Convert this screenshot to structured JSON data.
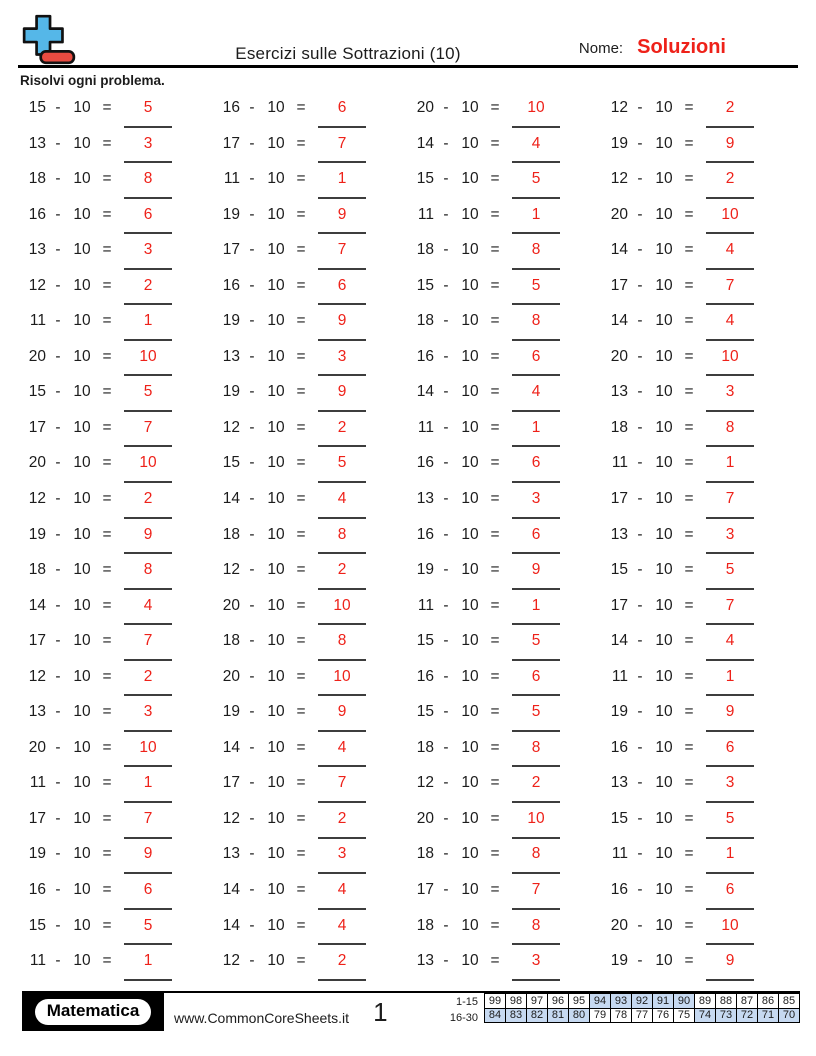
{
  "header": {
    "title": "Esercizi sulle Sottrazioni (10)",
    "name_label": "Nome:",
    "name_value": "Soluzioni"
  },
  "instruction": "Risolvi ogni problema.",
  "problems": {
    "operator": "-",
    "subtrahend": 10,
    "equals": "=",
    "items": [
      {
        "a": 15,
        "ans": 5
      },
      {
        "a": 16,
        "ans": 6
      },
      {
        "a": 20,
        "ans": 10
      },
      {
        "a": 12,
        "ans": 2
      },
      {
        "a": 13,
        "ans": 3
      },
      {
        "a": 17,
        "ans": 7
      },
      {
        "a": 14,
        "ans": 4
      },
      {
        "a": 19,
        "ans": 9
      },
      {
        "a": 18,
        "ans": 8
      },
      {
        "a": 11,
        "ans": 1
      },
      {
        "a": 15,
        "ans": 5
      },
      {
        "a": 12,
        "ans": 2
      },
      {
        "a": 16,
        "ans": 6
      },
      {
        "a": 19,
        "ans": 9
      },
      {
        "a": 11,
        "ans": 1
      },
      {
        "a": 20,
        "ans": 10
      },
      {
        "a": 13,
        "ans": 3
      },
      {
        "a": 17,
        "ans": 7
      },
      {
        "a": 18,
        "ans": 8
      },
      {
        "a": 14,
        "ans": 4
      },
      {
        "a": 12,
        "ans": 2
      },
      {
        "a": 16,
        "ans": 6
      },
      {
        "a": 15,
        "ans": 5
      },
      {
        "a": 17,
        "ans": 7
      },
      {
        "a": 11,
        "ans": 1
      },
      {
        "a": 19,
        "ans": 9
      },
      {
        "a": 18,
        "ans": 8
      },
      {
        "a": 14,
        "ans": 4
      },
      {
        "a": 20,
        "ans": 10
      },
      {
        "a": 13,
        "ans": 3
      },
      {
        "a": 16,
        "ans": 6
      },
      {
        "a": 20,
        "ans": 10
      },
      {
        "a": 15,
        "ans": 5
      },
      {
        "a": 19,
        "ans": 9
      },
      {
        "a": 14,
        "ans": 4
      },
      {
        "a": 13,
        "ans": 3
      },
      {
        "a": 17,
        "ans": 7
      },
      {
        "a": 12,
        "ans": 2
      },
      {
        "a": 11,
        "ans": 1
      },
      {
        "a": 18,
        "ans": 8
      },
      {
        "a": 20,
        "ans": 10
      },
      {
        "a": 15,
        "ans": 5
      },
      {
        "a": 16,
        "ans": 6
      },
      {
        "a": 11,
        "ans": 1
      },
      {
        "a": 12,
        "ans": 2
      },
      {
        "a": 14,
        "ans": 4
      },
      {
        "a": 13,
        "ans": 3
      },
      {
        "a": 17,
        "ans": 7
      },
      {
        "a": 19,
        "ans": 9
      },
      {
        "a": 18,
        "ans": 8
      },
      {
        "a": 16,
        "ans": 6
      },
      {
        "a": 13,
        "ans": 3
      },
      {
        "a": 18,
        "ans": 8
      },
      {
        "a": 12,
        "ans": 2
      },
      {
        "a": 19,
        "ans": 9
      },
      {
        "a": 15,
        "ans": 5
      },
      {
        "a": 14,
        "ans": 4
      },
      {
        "a": 20,
        "ans": 10
      },
      {
        "a": 11,
        "ans": 1
      },
      {
        "a": 17,
        "ans": 7
      },
      {
        "a": 17,
        "ans": 7
      },
      {
        "a": 18,
        "ans": 8
      },
      {
        "a": 15,
        "ans": 5
      },
      {
        "a": 14,
        "ans": 4
      },
      {
        "a": 12,
        "ans": 2
      },
      {
        "a": 20,
        "ans": 10
      },
      {
        "a": 16,
        "ans": 6
      },
      {
        "a": 11,
        "ans": 1
      },
      {
        "a": 13,
        "ans": 3
      },
      {
        "a": 19,
        "ans": 9
      },
      {
        "a": 15,
        "ans": 5
      },
      {
        "a": 19,
        "ans": 9
      },
      {
        "a": 20,
        "ans": 10
      },
      {
        "a": 14,
        "ans": 4
      },
      {
        "a": 18,
        "ans": 8
      },
      {
        "a": 16,
        "ans": 6
      },
      {
        "a": 11,
        "ans": 1
      },
      {
        "a": 17,
        "ans": 7
      },
      {
        "a": 12,
        "ans": 2
      },
      {
        "a": 13,
        "ans": 3
      },
      {
        "a": 17,
        "ans": 7
      },
      {
        "a": 12,
        "ans": 2
      },
      {
        "a": 20,
        "ans": 10
      },
      {
        "a": 15,
        "ans": 5
      },
      {
        "a": 19,
        "ans": 9
      },
      {
        "a": 13,
        "ans": 3
      },
      {
        "a": 18,
        "ans": 8
      },
      {
        "a": 11,
        "ans": 1
      },
      {
        "a": 16,
        "ans": 6
      },
      {
        "a": 14,
        "ans": 4
      },
      {
        "a": 17,
        "ans": 7
      },
      {
        "a": 16,
        "ans": 6
      },
      {
        "a": 15,
        "ans": 5
      },
      {
        "a": 14,
        "ans": 4
      },
      {
        "a": 18,
        "ans": 8
      },
      {
        "a": 20,
        "ans": 10
      },
      {
        "a": 11,
        "ans": 1
      },
      {
        "a": 12,
        "ans": 2
      },
      {
        "a": 13,
        "ans": 3
      },
      {
        "a": 19,
        "ans": 9
      }
    ]
  },
  "footer": {
    "badge_label": "Matematica",
    "website": "www.CommonCoreSheets.it",
    "page_number": "1",
    "score_rows": [
      {
        "label": "1-15",
        "values": [
          99,
          98,
          97,
          96,
          95,
          94,
          93,
          92,
          91,
          90,
          89,
          88,
          87,
          86,
          85
        ],
        "shaded": [
          false,
          false,
          false,
          false,
          false,
          true,
          true,
          true,
          true,
          true,
          false,
          false,
          false,
          false,
          false
        ]
      },
      {
        "label": "16-30",
        "values": [
          84,
          83,
          82,
          81,
          80,
          79,
          78,
          77,
          76,
          75,
          74,
          73,
          72,
          71,
          70
        ],
        "shaded": [
          true,
          true,
          true,
          true,
          true,
          false,
          false,
          false,
          false,
          false,
          true,
          true,
          true,
          true,
          true
        ]
      }
    ]
  },
  "colors": {
    "answer_red": "#ee2119",
    "score_shaded": "#c6d9f1",
    "logo_plus_blue": "#55b7e8",
    "logo_minus_red": "#e84b41"
  }
}
